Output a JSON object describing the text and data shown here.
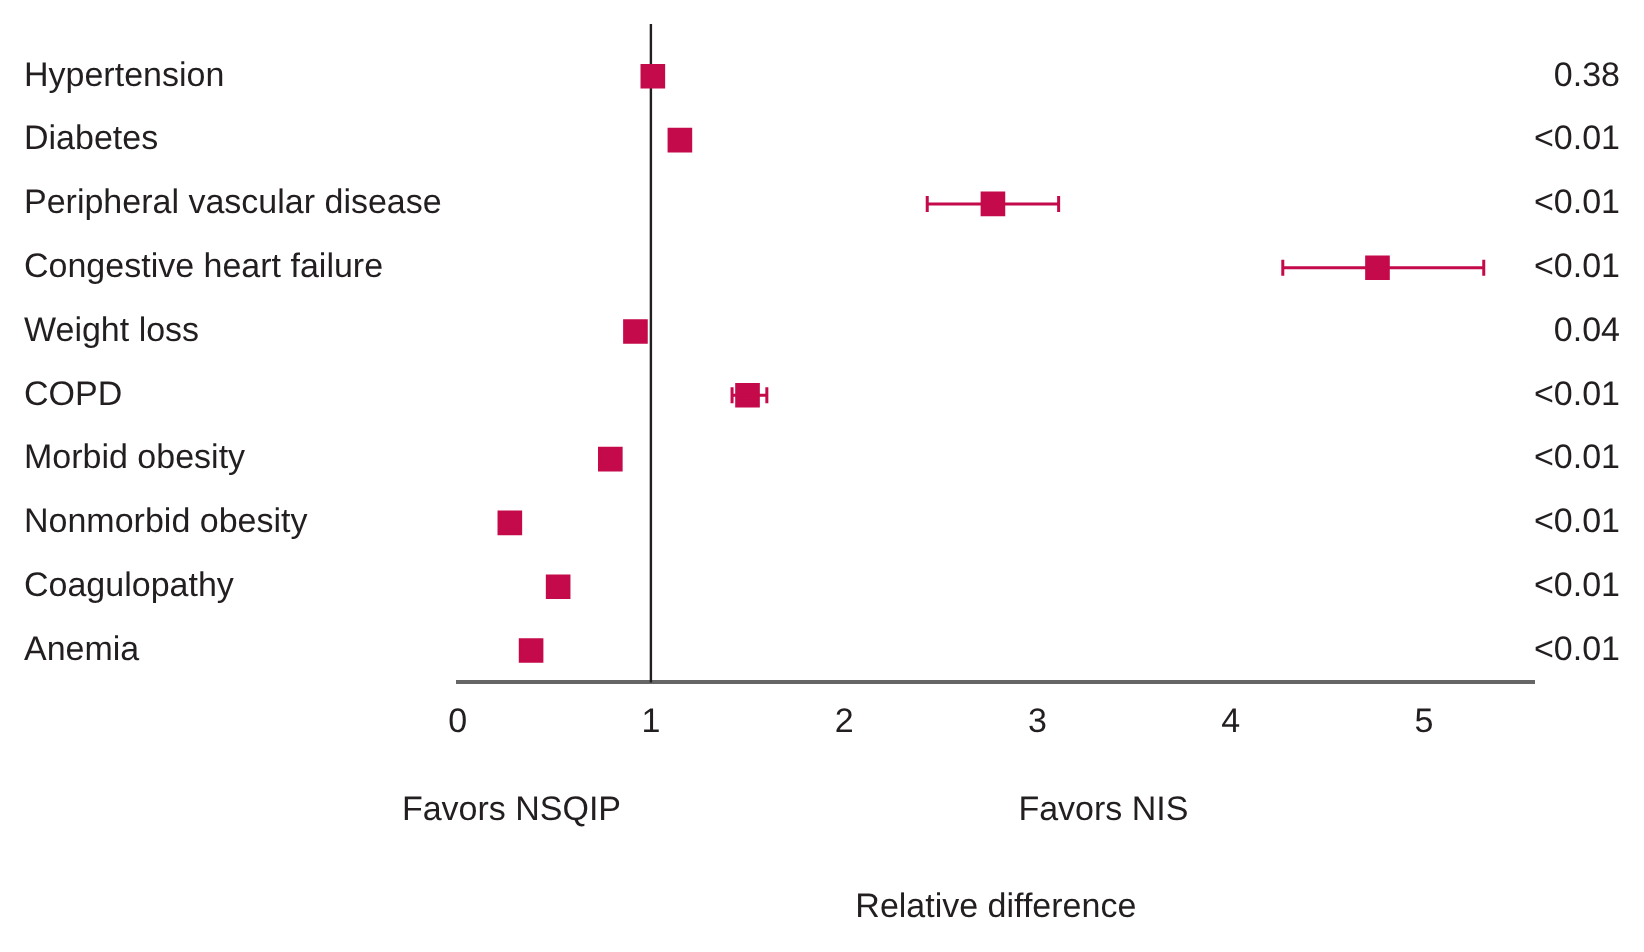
{
  "chart_data": {
    "type": "scatter",
    "orientation": "horizontal",
    "marker": "square",
    "grid": false,
    "legend": false,
    "categories": [
      "Hypertension",
      "Diabetes",
      "Peripheral vascular disease",
      "Congestive heart failure",
      "Weight loss",
      "COPD",
      "Morbid obesity",
      "Nonmorbid obesity",
      "Coagulopathy",
      "Anemia"
    ],
    "values": [
      1.01,
      1.15,
      2.77,
      4.76,
      0.92,
      1.5,
      0.79,
      0.27,
      0.52,
      0.38
    ],
    "errors": [
      null,
      null,
      [
        2.43,
        3.11
      ],
      [
        4.27,
        5.31
      ],
      null,
      [
        1.42,
        1.6
      ],
      null,
      null,
      null,
      null
    ],
    "color": "#c40a4a",
    "xlim": [
      0,
      5.57
    ],
    "xticks": [
      0,
      1,
      2,
      3,
      4,
      5
    ],
    "xlabel": "Relative difference",
    "ref_lines": [
      {
        "axis": "x",
        "value": 1,
        "color": "#231f20"
      }
    ],
    "annotations": [
      "0.38",
      "<0.01",
      "<0.01",
      "<0.01",
      "0.04",
      "<0.01",
      "<0.01",
      "<0.01",
      "<0.01",
      "<0.01",
      "Favors NSQIP",
      "Favors NIS"
    ]
  }
}
